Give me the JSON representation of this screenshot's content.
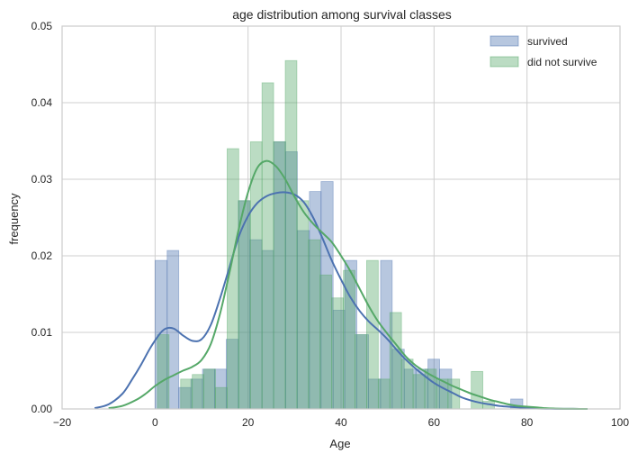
{
  "chart_data": {
    "type": "bar",
    "title": "age distribution among survival classes",
    "xlabel": "Age",
    "ylabel": "frequency",
    "xlim": [
      -20,
      100
    ],
    "ylim": [
      0,
      0.05
    ],
    "x_ticks": [
      -20,
      0,
      20,
      40,
      60,
      80,
      100
    ],
    "y_ticks": [
      0.0,
      0.01,
      0.02,
      0.03,
      0.04,
      0.05
    ],
    "x_tick_labels": [
      "−20",
      "0",
      "20",
      "40",
      "60",
      "80",
      "100"
    ],
    "y_tick_labels": [
      "0.00",
      "0.01",
      "0.02",
      "0.03",
      "0.04",
      "0.05"
    ],
    "grid": true,
    "legend_position": "top-right",
    "legend": [
      "survived",
      "did not survive"
    ],
    "colors": {
      "survived_fill": "#4C72B0",
      "did_not_survive_fill": "#55A868",
      "grid": "#cfcfcf",
      "axes_edge": "#cccccc"
    },
    "series": [
      {
        "name": "survived",
        "histogram": {
          "bins": [
            {
              "x0": 0.0,
              "x1": 2.6,
              "y": 0.0194
            },
            {
              "x0": 2.6,
              "x1": 5.1,
              "y": 0.0207
            },
            {
              "x0": 5.1,
              "x1": 7.7,
              "y": 0.0028
            },
            {
              "x0": 7.7,
              "x1": 10.2,
              "y": 0.0039
            },
            {
              "x0": 10.2,
              "x1": 12.8,
              "y": 0.0052
            },
            {
              "x0": 12.8,
              "x1": 15.3,
              "y": 0.0052
            },
            {
              "x0": 15.3,
              "x1": 17.9,
              "y": 0.0091
            },
            {
              "x0": 17.9,
              "x1": 20.4,
              "y": 0.0272
            },
            {
              "x0": 20.4,
              "x1": 23.0,
              "y": 0.0221
            },
            {
              "x0": 23.0,
              "x1": 25.5,
              "y": 0.0207
            },
            {
              "x0": 25.5,
              "x1": 28.1,
              "y": 0.0349
            },
            {
              "x0": 28.1,
              "x1": 30.6,
              "y": 0.0336
            },
            {
              "x0": 30.6,
              "x1": 33.2,
              "y": 0.0233
            },
            {
              "x0": 33.2,
              "x1": 35.7,
              "y": 0.0284
            },
            {
              "x0": 35.7,
              "x1": 38.3,
              "y": 0.0297
            },
            {
              "x0": 38.3,
              "x1": 40.8,
              "y": 0.0129
            },
            {
              "x0": 40.8,
              "x1": 43.4,
              "y": 0.0194
            },
            {
              "x0": 43.4,
              "x1": 45.9,
              "y": 0.0097
            },
            {
              "x0": 45.9,
              "x1": 48.5,
              "y": 0.0039
            },
            {
              "x0": 48.5,
              "x1": 51.0,
              "y": 0.0194
            },
            {
              "x0": 51.0,
              "x1": 53.6,
              "y": 0.0078
            },
            {
              "x0": 53.6,
              "x1": 56.1,
              "y": 0.0052
            },
            {
              "x0": 56.1,
              "x1": 58.7,
              "y": 0.0052
            },
            {
              "x0": 58.7,
              "x1": 61.2,
              "y": 0.0065
            },
            {
              "x0": 61.2,
              "x1": 63.8,
              "y": 0.0052
            },
            {
              "x0": 63.8,
              "x1": 66.3,
              "y": 0.0
            },
            {
              "x0": 66.3,
              "x1": 68.9,
              "y": 0.0
            },
            {
              "x0": 68.9,
              "x1": 71.4,
              "y": 0.0
            },
            {
              "x0": 71.4,
              "x1": 74.0,
              "y": 0.0
            },
            {
              "x0": 74.0,
              "x1": 76.5,
              "y": 0.0
            },
            {
              "x0": 76.5,
              "x1": 79.1,
              "y": 0.0013
            }
          ]
        },
        "kde": {
          "x": [
            -13,
            -10,
            -7,
            -5,
            -3,
            -1,
            1,
            2,
            3,
            4,
            5,
            6,
            8,
            10,
            12,
            14,
            16,
            18,
            20,
            22,
            24,
            26,
            28,
            30,
            32,
            34,
            36,
            38,
            40,
            42,
            44,
            46,
            48,
            50,
            52,
            54,
            56,
            58,
            60,
            62,
            64,
            66,
            68,
            70,
            72,
            74,
            76,
            78,
            80,
            82,
            84,
            86,
            88,
            90,
            93
          ],
          "y": [
            0.0001,
            0.0006,
            0.002,
            0.0038,
            0.0058,
            0.008,
            0.0098,
            0.0104,
            0.0106,
            0.0105,
            0.0101,
            0.0096,
            0.0089,
            0.0091,
            0.011,
            0.0145,
            0.0185,
            0.0225,
            0.0252,
            0.0269,
            0.0278,
            0.0282,
            0.0283,
            0.028,
            0.027,
            0.025,
            0.0223,
            0.0194,
            0.0169,
            0.0146,
            0.0128,
            0.0114,
            0.0103,
            0.0091,
            0.0077,
            0.0064,
            0.0053,
            0.0043,
            0.0034,
            0.0027,
            0.0021,
            0.0015,
            0.0011,
            0.0008,
            0.0006,
            0.0004,
            0.0003,
            0.0002,
            0.0001,
            6e-05,
            3e-05,
            2e-05,
            1e-05,
            1e-05,
            0.0
          ]
        }
      },
      {
        "name": "did not survive",
        "histogram": {
          "bins": [
            {
              "x0": 0.5,
              "x1": 3.0,
              "y": 0.0097
            },
            {
              "x0": 3.0,
              "x1": 5.5,
              "y": 0.0
            },
            {
              "x0": 5.5,
              "x1": 8.0,
              "y": 0.0039
            },
            {
              "x0": 8.0,
              "x1": 10.5,
              "y": 0.0045
            },
            {
              "x0": 10.5,
              "x1": 13.0,
              "y": 0.0052
            },
            {
              "x0": 13.0,
              "x1": 15.5,
              "y": 0.0028
            },
            {
              "x0": 15.5,
              "x1": 18.0,
              "y": 0.034
            },
            {
              "x0": 18.0,
              "x1": 20.5,
              "y": 0.0272
            },
            {
              "x0": 20.5,
              "x1": 23.0,
              "y": 0.0349
            },
            {
              "x0": 23.0,
              "x1": 25.5,
              "y": 0.0426
            },
            {
              "x0": 25.5,
              "x1": 28.0,
              "y": 0.0349
            },
            {
              "x0": 28.0,
              "x1": 30.5,
              "y": 0.0455
            },
            {
              "x0": 30.5,
              "x1": 33.0,
              "y": 0.0272
            },
            {
              "x0": 33.0,
              "x1": 35.5,
              "y": 0.0221
            },
            {
              "x0": 35.5,
              "x1": 38.0,
              "y": 0.0175
            },
            {
              "x0": 38.0,
              "x1": 40.5,
              "y": 0.0145
            },
            {
              "x0": 40.5,
              "x1": 43.0,
              "y": 0.0181
            },
            {
              "x0": 43.0,
              "x1": 45.5,
              "y": 0.0097
            },
            {
              "x0": 45.5,
              "x1": 48.0,
              "y": 0.0194
            },
            {
              "x0": 48.0,
              "x1": 50.5,
              "y": 0.0039
            },
            {
              "x0": 50.5,
              "x1": 53.0,
              "y": 0.0126
            },
            {
              "x0": 53.0,
              "x1": 55.5,
              "y": 0.0065
            },
            {
              "x0": 55.5,
              "x1": 58.0,
              "y": 0.0045
            },
            {
              "x0": 58.0,
              "x1": 60.5,
              "y": 0.0052
            },
            {
              "x0": 60.5,
              "x1": 63.0,
              "y": 0.0039
            },
            {
              "x0": 63.0,
              "x1": 65.5,
              "y": 0.0039
            },
            {
              "x0": 65.5,
              "x1": 68.0,
              "y": 0.0
            },
            {
              "x0": 68.0,
              "x1": 70.5,
              "y": 0.0049
            },
            {
              "x0": 70.5,
              "x1": 73.0,
              "y": 0.001
            },
            {
              "x0": 73.0,
              "x1": 75.5,
              "y": 0.0
            }
          ]
        },
        "kde": {
          "x": [
            -10,
            -7,
            -4,
            -2,
            0,
            2,
            4,
            6,
            8,
            10,
            12,
            14,
            16,
            18,
            20,
            22,
            24,
            26,
            28,
            30,
            32,
            34,
            36,
            38,
            40,
            42,
            44,
            46,
            48,
            50,
            52,
            54,
            56,
            58,
            60,
            62,
            64,
            66,
            68,
            70,
            72,
            74,
            76,
            78,
            80,
            82,
            84,
            86,
            88,
            90,
            93
          ],
          "y": [
            0.0001,
            0.0004,
            0.0012,
            0.002,
            0.003,
            0.0038,
            0.0044,
            0.005,
            0.0055,
            0.0064,
            0.0085,
            0.0125,
            0.0178,
            0.0235,
            0.0283,
            0.0315,
            0.0324,
            0.0317,
            0.03,
            0.0277,
            0.0257,
            0.0242,
            0.023,
            0.0218,
            0.02,
            0.018,
            0.0157,
            0.0134,
            0.0114,
            0.0098,
            0.0083,
            0.0068,
            0.0057,
            0.0049,
            0.0042,
            0.0036,
            0.003,
            0.0025,
            0.002,
            0.0016,
            0.0012,
            0.0009,
            0.0006,
            0.0004,
            0.0003,
            0.0002,
            0.0001,
            5e-05,
            2e-05,
            1e-05,
            0.0
          ]
        }
      }
    ]
  }
}
